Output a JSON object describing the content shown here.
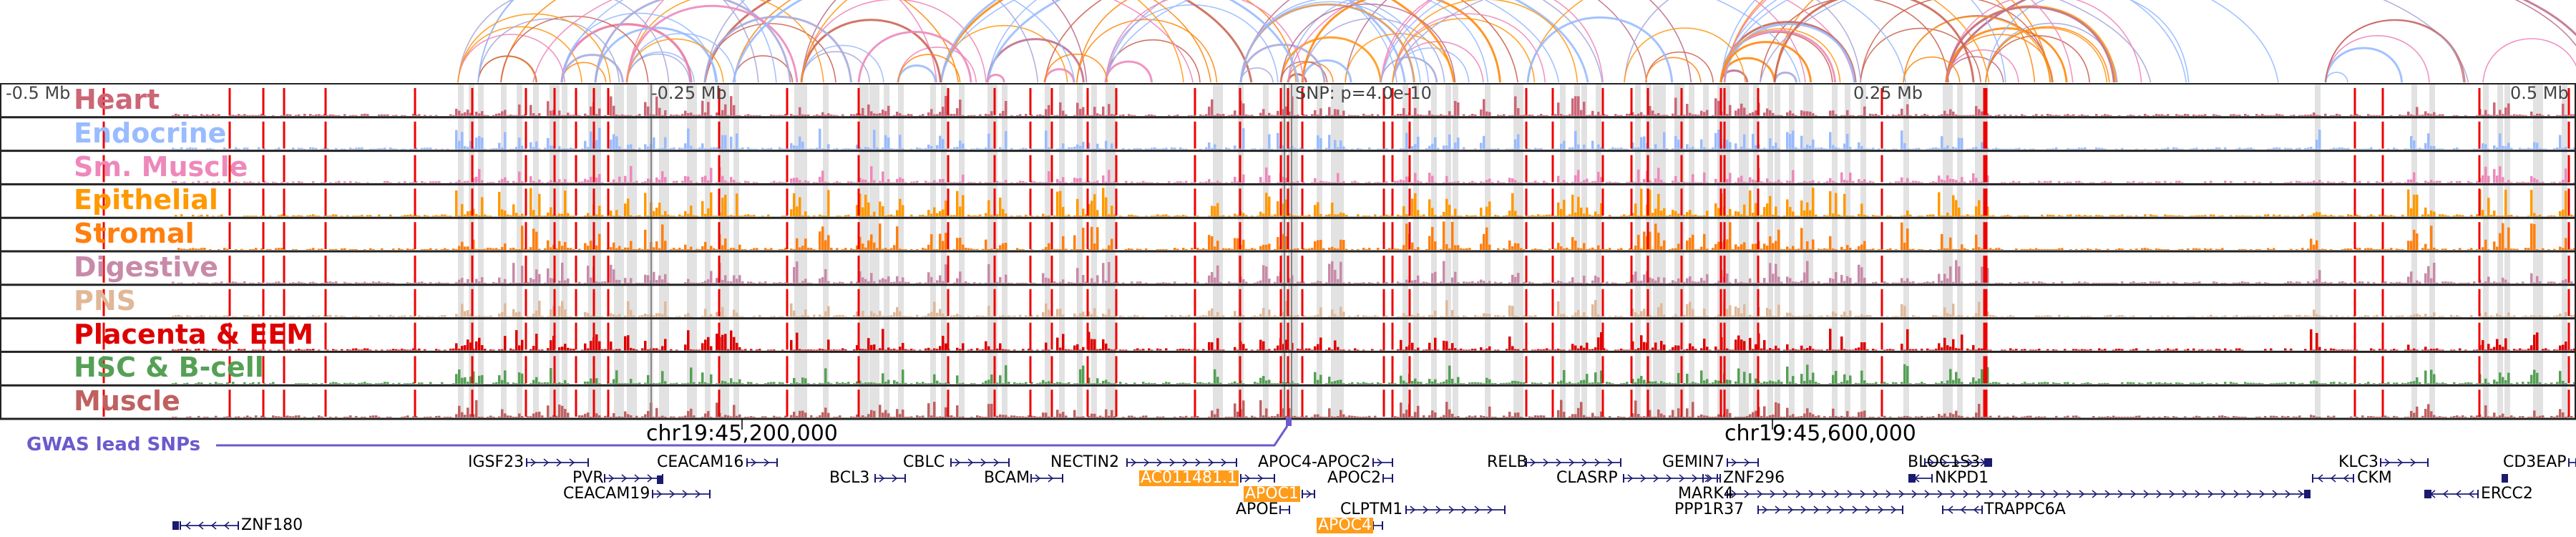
{
  "tracks": [
    {
      "name": "Heart",
      "color": "#cc6677"
    },
    {
      "name": "Endocrine",
      "color": "#99bbff"
    },
    {
      "name": "Sm. Muscle",
      "color": "#ee88bb"
    },
    {
      "name": "Epithelial",
      "color": "#ff9900"
    },
    {
      "name": "Stromal",
      "color": "#ff7f0e"
    },
    {
      "name": "Digestive",
      "color": "#c88aa8"
    },
    {
      "name": "PNS",
      "color": "#e0b898"
    },
    {
      "name": "Placenta & EEM",
      "color": "#dd0000"
    },
    {
      "name": "HSC & B-cell",
      "color": "#55a055"
    },
    {
      "name": "Muscle",
      "color": "#c06060"
    }
  ],
  "axis": {
    "minus_half": "-0.5 Mb",
    "minus_quarter": "-0.25 Mb",
    "snp": "SNP: p=4.0e-10",
    "plus_quarter": "0.25 Mb",
    "plus_half": "0.5 Mb"
  },
  "coords": {
    "left": "chr19:45,200,000",
    "right": "chr19:45,600,000"
  },
  "gwas": {
    "label": "GWAS lead SNPs",
    "color": "#6a5acd"
  },
  "genes": [
    {
      "name": "IGSF23",
      "highlight": false
    },
    {
      "name": "CEACAM16",
      "highlight": false
    },
    {
      "name": "PVR",
      "highlight": false
    },
    {
      "name": "CEACAM19",
      "highlight": false
    },
    {
      "name": "ZNF180",
      "highlight": false
    },
    {
      "name": "BCL3",
      "highlight": false
    },
    {
      "name": "CBLC",
      "highlight": false
    },
    {
      "name": "BCAM",
      "highlight": false
    },
    {
      "name": "NECTIN2",
      "highlight": false
    },
    {
      "name": "AC011481.1",
      "highlight": true
    },
    {
      "name": "APOC1",
      "highlight": true
    },
    {
      "name": "APOE",
      "highlight": false
    },
    {
      "name": "APOC4",
      "highlight": true
    },
    {
      "name": "APOC4-APOC2",
      "highlight": false
    },
    {
      "name": "APOC2",
      "highlight": false
    },
    {
      "name": "CLPTM1",
      "highlight": false
    },
    {
      "name": "RELB",
      "highlight": false
    },
    {
      "name": "CLASRP",
      "highlight": false
    },
    {
      "name": "GEMIN7",
      "highlight": false
    },
    {
      "name": "ZNF296",
      "highlight": false
    },
    {
      "name": "MARK4",
      "highlight": false
    },
    {
      "name": "PPP1R37",
      "highlight": false
    },
    {
      "name": "BLOC1S3",
      "highlight": false
    },
    {
      "name": "NKPD1",
      "highlight": false
    },
    {
      "name": "TRAPPC6A",
      "highlight": false
    },
    {
      "name": "KLC3",
      "highlight": false
    },
    {
      "name": "CKM",
      "highlight": false
    },
    {
      "name": "ERCC2",
      "highlight": false
    },
    {
      "name": "CD3EAP",
      "highlight": false
    }
  ],
  "colors": {
    "highlight_gene": "#ff9c1a",
    "gene_body": "#1a1a6e",
    "marker_line": "#ee0000",
    "band": "#e2e2e2"
  }
}
